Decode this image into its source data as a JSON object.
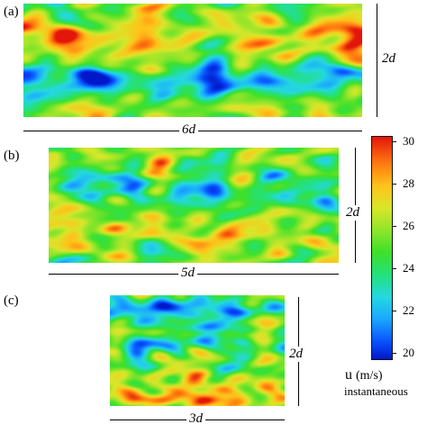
{
  "panels": [
    {
      "label": "(a)",
      "width_label": "6d",
      "height_label": "2d"
    },
    {
      "label": "(b)",
      "width_label": "5d",
      "height_label": "2d"
    },
    {
      "label": "(c)",
      "width_label": "3d",
      "height_label": "2d"
    }
  ],
  "colorbar": {
    "ticks": [
      "30",
      "28",
      "26",
      "24",
      "22",
      "20"
    ],
    "min": 20,
    "max": 30,
    "quantity": "u",
    "unit": "(m/s)",
    "subtitle": "instantaneous",
    "colors": [
      "#0018c8",
      "#0a52ff",
      "#1aa7ff",
      "#25d8e0",
      "#24e07a",
      "#3ee02a",
      "#8fe52a",
      "#d9e62a",
      "#ffc21a",
      "#ff7a10",
      "#e3160c"
    ]
  }
}
